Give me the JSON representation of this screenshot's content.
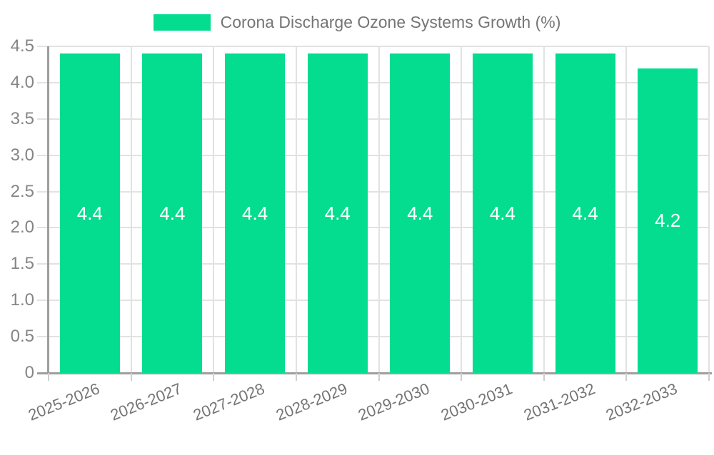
{
  "chart_data": {
    "type": "bar",
    "title": "Corona Discharge Ozone Systems Growth (%)",
    "legend": "Corona Discharge Ozone Systems Growth (%)",
    "legend_position": "top-center",
    "categories": [
      "2025-2026",
      "2026-2027",
      "2027-2028",
      "2028-2029",
      "2029-2030",
      "2030-2031",
      "2031-2032",
      "2032-2033"
    ],
    "series": [
      {
        "name": "Corona Discharge Ozone Systems Growth (%)",
        "values": [
          4.4,
          4.4,
          4.4,
          4.4,
          4.4,
          4.4,
          4.4,
          4.2
        ],
        "value_labels": [
          "4.4",
          "4.4",
          "4.4",
          "4.4",
          "4.4",
          "4.4",
          "4.4",
          "4.2"
        ]
      }
    ],
    "xlabel": "",
    "ylabel": "",
    "ylim": [
      0,
      4.5
    ],
    "ytick_step": 0.5,
    "ytick_labels": [
      "0",
      "0.5",
      "1.0",
      "1.5",
      "2.0",
      "2.5",
      "3.0",
      "3.5",
      "4.0",
      "4.5"
    ],
    "grid": "horizontal and vertical, light gray",
    "colors": {
      "bar": "#04DC90",
      "value_label_text": "#ffffff",
      "axis_line": "#9e9e9e",
      "grid_line": "#e2e2e2",
      "tick_mark": "#cfcfcf",
      "tick_text": "#858585",
      "category_text": "#757575",
      "legend_text": "#757575",
      "background": "#ffffff"
    }
  }
}
